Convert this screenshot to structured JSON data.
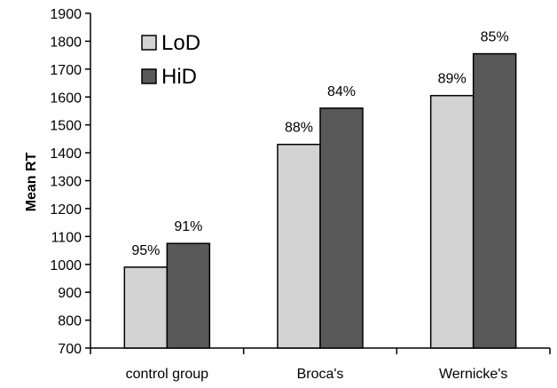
{
  "chart_data": {
    "type": "bar",
    "ylabel": "Mean RT",
    "xlabel": "",
    "ylim": [
      700,
      1900
    ],
    "yticks": [
      700,
      800,
      900,
      1000,
      1100,
      1200,
      1300,
      1400,
      1500,
      1600,
      1700,
      1800,
      1900
    ],
    "categories": [
      "control group",
      "Broca's",
      "Wernicke's"
    ],
    "series": [
      {
        "name": "LoD",
        "color": "#d3d3d3",
        "values": [
          990,
          1430,
          1605
        ],
        "labels": [
          "95%",
          "88%",
          "89%"
        ]
      },
      {
        "name": "HiD",
        "color": "#595959",
        "values": [
          1075,
          1560,
          1755
        ],
        "labels": [
          "91%",
          "84%",
          "85%"
        ]
      }
    ],
    "legend_position": "top-left",
    "grid": false
  }
}
